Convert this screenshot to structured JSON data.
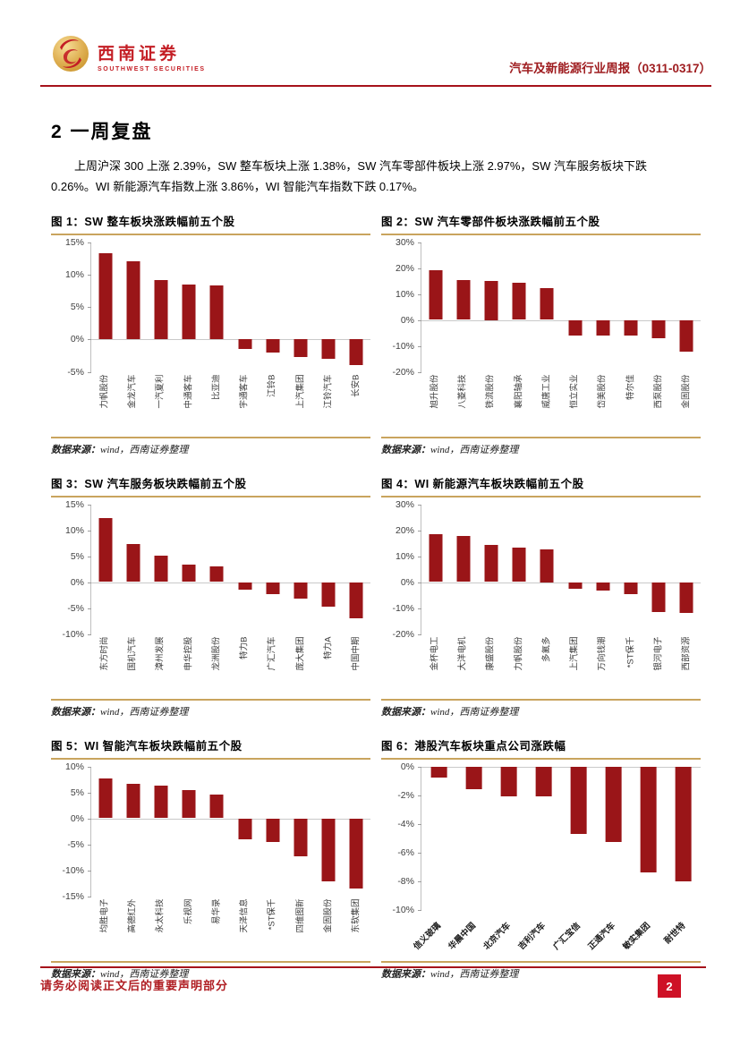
{
  "header": {
    "logo_title": "西南证券",
    "logo_subtitle": "SOUTHWEST SECURITIES",
    "report_title": "汽车及新能源行业周报（0311-0317）"
  },
  "section": {
    "title": "2 一周复盘",
    "paragraph": "上周沪深 300 上涨 2.39%，SW 整车板块上涨 1.38%，SW 汽车零部件板块上涨 2.97%，SW 汽车服务板块下跌 0.26%。WI 新能源汽车指数上涨 3.86%，WI 智能汽车指数下跌 0.17%。"
  },
  "source": {
    "prefix": "数据来源：",
    "rest": "wind，西南证券整理"
  },
  "colors": {
    "bar": "#9A1518",
    "accent_gold": "#C9A45E",
    "brand_red": "#A6121B",
    "badge_red": "#CE1126"
  },
  "footer": {
    "disclaimer": "请务必阅读正文后的重要声明部分",
    "page_number": "2"
  },
  "chart_data": [
    {
      "type": "bar",
      "title": "图 1：SW 整车板块涨跌幅前五个股",
      "categories": [
        "力帆股份",
        "金龙汽车",
        "一汽夏利",
        "中通客车",
        "比亚迪",
        "宇通客车",
        "江铃B",
        "上汽集团",
        "江铃汽车",
        "长安B"
      ],
      "values": [
        13.3,
        12.0,
        9.2,
        8.4,
        8.3,
        -1.5,
        -2.0,
        -2.7,
        -3.0,
        -4.0
      ],
      "ylim": [
        -5,
        15
      ],
      "yticks": [
        15,
        10,
        5,
        0,
        -5
      ],
      "label_rotation": 90,
      "grid": false,
      "legend": "none"
    },
    {
      "type": "bar",
      "title": "图 2：SW 汽车零部件板块涨跌幅前五个股",
      "categories": [
        "旭升股份",
        "八菱科技",
        "铁流股份",
        "襄阳轴承",
        "威唐工业",
        "恒立实业",
        "岱美股份",
        "特尔佳",
        "西泵股份",
        "金固股份"
      ],
      "values": [
        19.2,
        15.4,
        15.0,
        14.2,
        12.3,
        -5.9,
        -6.0,
        -6.2,
        -7.0,
        -12.2
      ],
      "ylim": [
        -20,
        30
      ],
      "yticks": [
        30,
        20,
        10,
        0,
        -10,
        -20
      ],
      "label_rotation": 90,
      "grid": false,
      "legend": "none"
    },
    {
      "type": "bar",
      "title": "图 3：SW 汽车服务板块跌幅前五个股",
      "categories": [
        "东方时尚",
        "国机汽车",
        "漳州发展",
        "申华控股",
        "龙洲股份",
        "特力B",
        "广汇汽车",
        "庞大集团",
        "特力A",
        "中国中期"
      ],
      "values": [
        12.4,
        7.4,
        5.1,
        3.4,
        3.0,
        -1.4,
        -2.4,
        -3.2,
        -4.8,
        -6.9
      ],
      "ylim": [
        -10,
        15
      ],
      "yticks": [
        15,
        10,
        5,
        0,
        -5,
        -10
      ],
      "label_rotation": 90,
      "grid": false,
      "legend": "none"
    },
    {
      "type": "bar",
      "title": "图 4：WI 新能源汽车板块跌幅前五个股",
      "categories": [
        "金杯电工",
        "大洋电机",
        "康盛股份",
        "力帆股份",
        "多氟多",
        "上汽集团",
        "万向钱潮",
        "*ST保千",
        "银河电子",
        "西部资源"
      ],
      "values": [
        18.6,
        17.7,
        14.4,
        13.3,
        12.5,
        -2.5,
        -3.2,
        -4.6,
        -11.5,
        -11.8
      ],
      "ylim": [
        -20,
        30
      ],
      "yticks": [
        30,
        20,
        10,
        0,
        -10,
        -20
      ],
      "label_rotation": 90,
      "grid": false,
      "legend": "none"
    },
    {
      "type": "bar",
      "title": "图 5：WI 智能汽车板块跌幅前五个股",
      "categories": [
        "均胜电子",
        "高德红外",
        "永太科技",
        "乐视网",
        "易华录",
        "天泽信息",
        "*ST保千",
        "四维图新",
        "金固股份",
        "东软集团"
      ],
      "values": [
        7.7,
        6.6,
        6.3,
        5.4,
        4.6,
        -4.0,
        -4.6,
        -7.4,
        -12.2,
        -13.5
      ],
      "ylim": [
        -15,
        10
      ],
      "yticks": [
        10,
        5,
        0,
        -5,
        -10,
        -15
      ],
      "label_rotation": 90,
      "grid": false,
      "legend": "none"
    },
    {
      "type": "bar",
      "title": "图 6：港股汽车板块重点公司涨跌幅",
      "categories": [
        "信义玻璃",
        "华晨中国",
        "北京汽车",
        "吉利汽车",
        "广汇宝信",
        "正通汽车",
        "敏实集团",
        "耐世特"
      ],
      "values": [
        -0.8,
        -1.6,
        -2.1,
        -2.1,
        -4.7,
        -5.3,
        -7.4,
        -8.0
      ],
      "ylim": [
        -10,
        0
      ],
      "yticks": [
        0,
        -2,
        -4,
        -6,
        -8,
        -10
      ],
      "label_rotation": 45,
      "grid": false,
      "legend": "none"
    }
  ]
}
